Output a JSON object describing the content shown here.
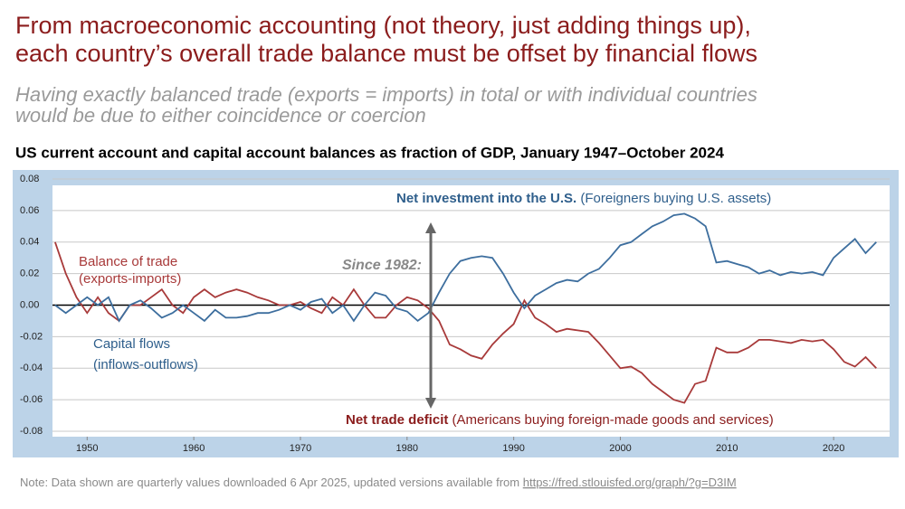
{
  "header": {
    "title": [
      "From macroeconomic accounting (not theory, just adding things up),",
      "each country’s overall trade balance must be offset by financial flows"
    ],
    "subtitle": [
      "Having exactly balanced trade (exports = imports) in total or with individual countries",
      "would be due to either coincidence or coercion"
    ]
  },
  "chart_data": {
    "type": "line",
    "title": "US current account and capital account balances as fraction of GDP, January 1947–October 2024",
    "x": [
      1947,
      1948,
      1949,
      1950,
      1951,
      1952,
      1953,
      1954,
      1955,
      1956,
      1957,
      1958,
      1959,
      1960,
      1961,
      1962,
      1963,
      1964,
      1965,
      1966,
      1967,
      1968,
      1969,
      1970,
      1971,
      1972,
      1973,
      1974,
      1975,
      1976,
      1977,
      1978,
      1979,
      1980,
      1981,
      1982,
      1983,
      1984,
      1985,
      1986,
      1987,
      1988,
      1989,
      1990,
      1991,
      1992,
      1993,
      1994,
      1995,
      1996,
      1997,
      1998,
      1999,
      2000,
      2001,
      2002,
      2003,
      2004,
      2005,
      2006,
      2007,
      2008,
      2009,
      2010,
      2011,
      2012,
      2013,
      2014,
      2015,
      2016,
      2017,
      2018,
      2019,
      2020,
      2021,
      2022,
      2023,
      2024
    ],
    "series": [
      {
        "name": "Balance of trade",
        "color": "#a83a3a",
        "values": [
          0.04,
          0.02,
          0.005,
          -0.005,
          0.005,
          -0.005,
          -0.01,
          0.0,
          0.0,
          0.005,
          0.01,
          0.0,
          -0.005,
          0.005,
          0.01,
          0.005,
          0.008,
          0.01,
          0.008,
          0.005,
          0.003,
          0.0,
          0.0,
          0.002,
          -0.002,
          -0.005,
          0.005,
          0.0,
          0.01,
          0.0,
          -0.008,
          -0.008,
          0.0,
          0.005,
          0.003,
          -0.002,
          -0.01,
          -0.025,
          -0.028,
          -0.032,
          -0.034,
          -0.025,
          -0.018,
          -0.012,
          0.003,
          -0.008,
          -0.012,
          -0.017,
          -0.015,
          -0.016,
          -0.017,
          -0.024,
          -0.032,
          -0.04,
          -0.039,
          -0.043,
          -0.05,
          -0.055,
          -0.06,
          -0.062,
          -0.05,
          -0.048,
          -0.027,
          -0.03,
          -0.03,
          -0.027,
          -0.022,
          -0.022,
          -0.023,
          -0.024,
          -0.022,
          -0.023,
          -0.022,
          -0.028,
          -0.036,
          -0.039,
          -0.033,
          -0.04
        ]
      },
      {
        "name": "Capital flows",
        "color": "#3d6e9e",
        "values": [
          0.0,
          -0.005,
          0.0,
          0.005,
          0.0,
          0.005,
          -0.01,
          0.0,
          0.003,
          -0.002,
          -0.008,
          -0.005,
          0.0,
          -0.005,
          -0.01,
          -0.003,
          -0.008,
          -0.008,
          -0.007,
          -0.005,
          -0.005,
          -0.003,
          0.0,
          -0.003,
          0.002,
          0.004,
          -0.005,
          0.0,
          -0.01,
          0.0,
          0.008,
          0.006,
          -0.002,
          -0.004,
          -0.01,
          -0.005,
          0.008,
          0.02,
          0.028,
          0.03,
          0.031,
          0.03,
          0.02,
          0.008,
          -0.002,
          0.006,
          0.01,
          0.014,
          0.016,
          0.015,
          0.02,
          0.023,
          0.03,
          0.038,
          0.04,
          0.045,
          0.05,
          0.053,
          0.057,
          0.058,
          0.055,
          0.05,
          0.027,
          0.028,
          0.026,
          0.024,
          0.02,
          0.022,
          0.019,
          0.021,
          0.02,
          0.021,
          0.019,
          0.03,
          0.036,
          0.042,
          0.033,
          0.04
        ]
      }
    ],
    "xlim": [
      1946.75,
      2025.25
    ],
    "ylim": [
      -0.08,
      0.08
    ],
    "xticks": [
      1950,
      1960,
      1970,
      1980,
      1990,
      2000,
      2010,
      2020
    ],
    "yticks": [
      0.08,
      0.06,
      0.04,
      0.02,
      {
        "value": 0,
        "label": "0.00"
      },
      -0.02,
      -0.04,
      -0.06,
      -0.08
    ],
    "grid": true,
    "annotations": {
      "investment": {
        "bold": "Net investment into the U.S.",
        "text": " (Foreigners buying U.S. assets)"
      },
      "deficit": {
        "bold": "Net trade deficit",
        "text": " (Americans buying foreign-made goods and services)"
      },
      "trade_label": [
        "Balance of trade",
        "(exports-imports)"
      ],
      "capital_label": [
        "Capital flows",
        "(inflows-outflows)"
      ],
      "since": "Since 1982:"
    }
  },
  "note": {
    "text": "Note: Data shown are quarterly values downloaded 6 Apr 2025, updated versions available from ",
    "link": "https://fred.stlouisfed.org/graph/?g=D3IM"
  }
}
